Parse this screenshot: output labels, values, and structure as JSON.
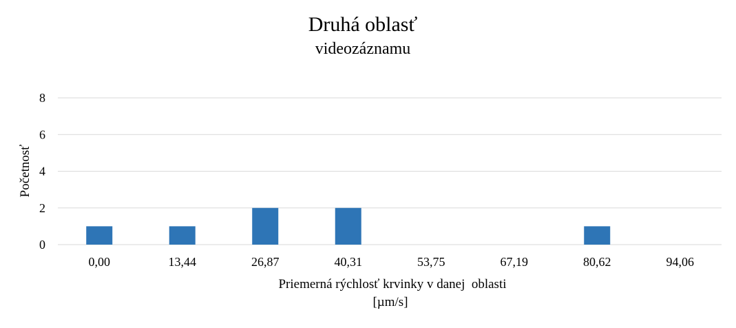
{
  "chart_data": {
    "type": "bar",
    "title": "Druhá oblasť",
    "subtitle": "videozáznamu",
    "xlabel": "Priemerná rýchlosť krvinky v danej  oblasti",
    "xlabel_unit": "[µm/s]",
    "ylabel": "Početnosť",
    "categories": [
      "0,00",
      "13,44",
      "26,87",
      "40,31",
      "53,75",
      "67,19",
      "80,62",
      "94,06"
    ],
    "values": [
      1,
      1,
      2,
      2,
      0,
      0,
      1,
      0
    ],
    "ylim": [
      0,
      8
    ],
    "yticks": [
      "0",
      "2",
      "4",
      "6",
      "8"
    ],
    "grid": true,
    "legend": "none",
    "bar_color": "#2e75b6",
    "grid_color": "#d9d9d9"
  }
}
